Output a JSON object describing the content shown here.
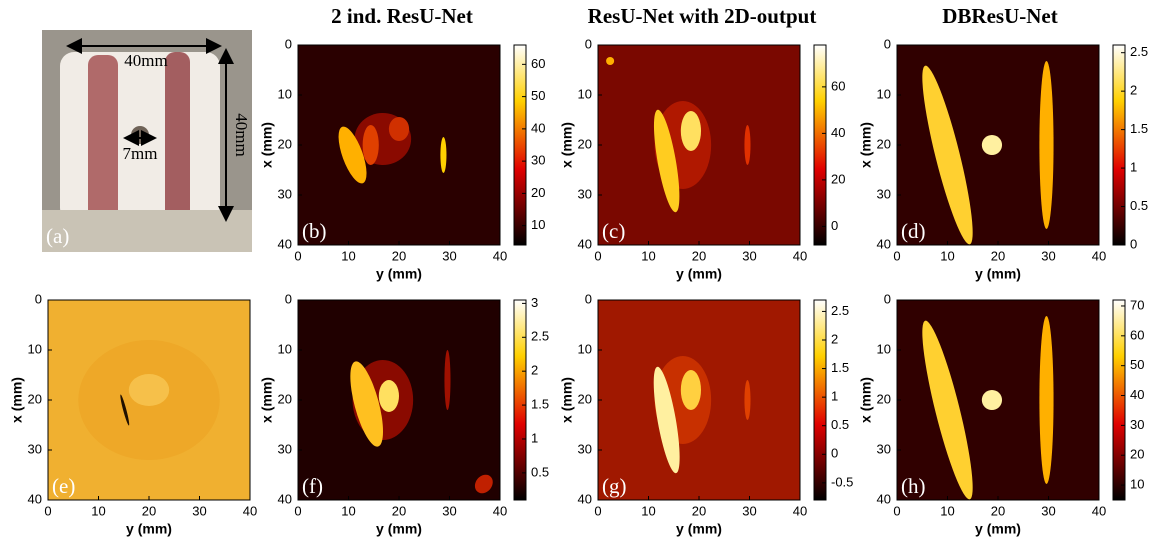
{
  "column_titles": [
    "2 ind. ResU-Net",
    "ResU-Net with 2D-output",
    "DBResU-Net"
  ],
  "photo": {
    "label": "(a)",
    "width_label": "40mm",
    "height_label": "40mm",
    "hole_label": "7mm"
  },
  "panels": [
    {
      "label": "(b)",
      "x_label": "y (mm)",
      "y_label": "x (mm)",
      "xlim": [
        0,
        40
      ],
      "ylim": [
        0,
        40
      ],
      "xticks": [
        0,
        10,
        20,
        30,
        40
      ],
      "yticks": [
        0,
        10,
        20,
        30,
        40
      ],
      "colorbar": {
        "lim": [
          4,
          66
        ],
        "ticks": [
          10,
          20,
          30,
          40,
          50,
          60
        ]
      }
    },
    {
      "label": "(c)",
      "x_label": "y (mm)",
      "y_label": "x (mm)",
      "xlim": [
        0,
        40
      ],
      "ylim": [
        0,
        40
      ],
      "xticks": [
        0,
        10,
        20,
        30,
        40
      ],
      "yticks": [
        0,
        10,
        20,
        30,
        40
      ],
      "colorbar": {
        "lim": [
          -8,
          78
        ],
        "ticks": [
          0,
          20,
          40,
          60
        ]
      }
    },
    {
      "label": "(d)",
      "x_label": "y (mm)",
      "y_label": "x (mm)",
      "xlim": [
        0,
        40
      ],
      "ylim": [
        0,
        40
      ],
      "xticks": [
        0,
        10,
        20,
        30,
        40
      ],
      "yticks": [
        0,
        10,
        20,
        30,
        40
      ],
      "colorbar": {
        "lim": [
          0,
          2.6
        ],
        "ticks": [
          0,
          0.5,
          1,
          1.5,
          2,
          2.5
        ]
      }
    },
    {
      "label": "(e)",
      "x_label": "y (mm)",
      "y_label": "x (mm)",
      "xlim": [
        0,
        40
      ],
      "ylim": [
        0,
        40
      ],
      "xticks": [
        0,
        10,
        20,
        30,
        40
      ],
      "yticks": [
        0,
        10,
        20,
        30,
        40
      ]
    },
    {
      "label": "(f)",
      "x_label": "y (mm)",
      "y_label": "x (mm)",
      "xlim": [
        0,
        40
      ],
      "ylim": [
        0,
        40
      ],
      "xticks": [
        0,
        10,
        20,
        30,
        40
      ],
      "yticks": [
        0,
        10,
        20,
        30,
        40
      ],
      "colorbar": {
        "lim": [
          0.1,
          3.05
        ],
        "ticks": [
          0.5,
          1,
          1.5,
          2,
          2.5,
          3
        ]
      }
    },
    {
      "label": "(g)",
      "x_label": "y (mm)",
      "y_label": "x (mm)",
      "xlim": [
        0,
        40
      ],
      "ylim": [
        0,
        40
      ],
      "xticks": [
        0,
        10,
        20,
        30,
        40
      ],
      "yticks": [
        0,
        10,
        20,
        30,
        40
      ],
      "colorbar": {
        "lim": [
          -0.8,
          2.7
        ],
        "ticks": [
          -0.5,
          0,
          0.5,
          1,
          1.5,
          2,
          2.5
        ]
      }
    },
    {
      "label": "(h)",
      "x_label": "y (mm)",
      "y_label": "x (mm)",
      "xlim": [
        0,
        40
      ],
      "ylim": [
        0,
        40
      ],
      "xticks": [
        0,
        10,
        20,
        30,
        40
      ],
      "yticks": [
        0,
        10,
        20,
        30,
        40
      ],
      "colorbar": {
        "lim": [
          5,
          72
        ],
        "ticks": [
          10,
          20,
          30,
          40,
          50,
          60,
          70
        ]
      }
    }
  ]
}
